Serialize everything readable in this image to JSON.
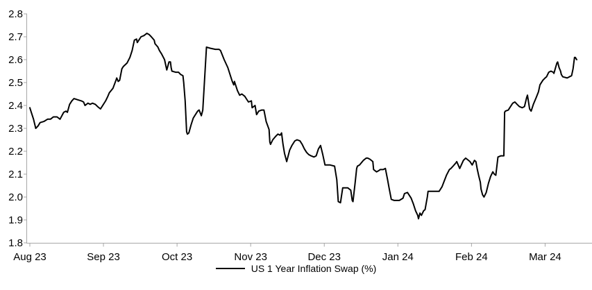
{
  "chart_data": {
    "type": "line",
    "series_name": "US 1 Year Inflation Swap (%)",
    "x_ticks": [
      "Aug 23",
      "Sep 23",
      "Oct 23",
      "Nov 23",
      "Dec 23",
      "Jan 24",
      "Feb 24",
      "Mar 24"
    ],
    "y_ticks": [
      "2.8",
      "2.7",
      "2.6",
      "2.5",
      "2.4",
      "2.3",
      "2.2",
      "2.1",
      "2.0",
      "1.9",
      "1.8"
    ],
    "ylim": [
      1.8,
      2.8
    ],
    "xlim_months": [
      0,
      7.64
    ],
    "grid": false,
    "legend_position": "bottom-center",
    "line_color": "#000000",
    "axis_color": "#a6a6a6",
    "label_color": "#000000",
    "points_format": "[months_since_Aug_2023, swap_rate_percent]",
    "points": [
      [
        0.0,
        2.39
      ],
      [
        0.02,
        2.37
      ],
      [
        0.05,
        2.34
      ],
      [
        0.08,
        2.3
      ],
      [
        0.11,
        2.31
      ],
      [
        0.14,
        2.325
      ],
      [
        0.19,
        2.33
      ],
      [
        0.24,
        2.34
      ],
      [
        0.28,
        2.34
      ],
      [
        0.32,
        2.35
      ],
      [
        0.37,
        2.35
      ],
      [
        0.41,
        2.34
      ],
      [
        0.46,
        2.37
      ],
      [
        0.49,
        2.375
      ],
      [
        0.51,
        2.37
      ],
      [
        0.54,
        2.405
      ],
      [
        0.57,
        2.42
      ],
      [
        0.6,
        2.43
      ],
      [
        0.65,
        2.425
      ],
      [
        0.7,
        2.42
      ],
      [
        0.73,
        2.415
      ],
      [
        0.75,
        2.4
      ],
      [
        0.79,
        2.41
      ],
      [
        0.82,
        2.405
      ],
      [
        0.85,
        2.41
      ],
      [
        0.89,
        2.405
      ],
      [
        0.92,
        2.395
      ],
      [
        0.96,
        2.385
      ],
      [
        0.99,
        2.4
      ],
      [
        1.03,
        2.42
      ],
      [
        1.06,
        2.44
      ],
      [
        1.08,
        2.455
      ],
      [
        1.13,
        2.475
      ],
      [
        1.17,
        2.51
      ],
      [
        1.18,
        2.52
      ],
      [
        1.2,
        2.505
      ],
      [
        1.22,
        2.51
      ],
      [
        1.25,
        2.56
      ],
      [
        1.27,
        2.57
      ],
      [
        1.32,
        2.585
      ],
      [
        1.36,
        2.61
      ],
      [
        1.39,
        2.64
      ],
      [
        1.42,
        2.685
      ],
      [
        1.45,
        2.69
      ],
      [
        1.46,
        2.675
      ],
      [
        1.48,
        2.685
      ],
      [
        1.51,
        2.7
      ],
      [
        1.55,
        2.705
      ],
      [
        1.59,
        2.715
      ],
      [
        1.62,
        2.71
      ],
      [
        1.65,
        2.7
      ],
      [
        1.69,
        2.685
      ],
      [
        1.7,
        2.67
      ],
      [
        1.74,
        2.655
      ],
      [
        1.76,
        2.64
      ],
      [
        1.79,
        2.625
      ],
      [
        1.83,
        2.6
      ],
      [
        1.86,
        2.555
      ],
      [
        1.89,
        2.59
      ],
      [
        1.91,
        2.59
      ],
      [
        1.92,
        2.565
      ],
      [
        1.93,
        2.55
      ],
      [
        1.98,
        2.545
      ],
      [
        2.02,
        2.545
      ],
      [
        2.05,
        2.535
      ],
      [
        2.08,
        2.53
      ],
      [
        2.09,
        2.5
      ],
      [
        2.11,
        2.42
      ],
      [
        2.13,
        2.285
      ],
      [
        2.14,
        2.275
      ],
      [
        2.16,
        2.28
      ],
      [
        2.19,
        2.315
      ],
      [
        2.22,
        2.345
      ],
      [
        2.25,
        2.36
      ],
      [
        2.28,
        2.375
      ],
      [
        2.3,
        2.38
      ],
      [
        2.33,
        2.355
      ],
      [
        2.35,
        2.38
      ],
      [
        2.4,
        2.655
      ],
      [
        2.45,
        2.65
      ],
      [
        2.52,
        2.645
      ],
      [
        2.57,
        2.645
      ],
      [
        2.59,
        2.64
      ],
      [
        2.64,
        2.6
      ],
      [
        2.69,
        2.565
      ],
      [
        2.73,
        2.525
      ],
      [
        2.75,
        2.505
      ],
      [
        2.77,
        2.49
      ],
      [
        2.78,
        2.505
      ],
      [
        2.82,
        2.465
      ],
      [
        2.85,
        2.445
      ],
      [
        2.88,
        2.45
      ],
      [
        2.92,
        2.44
      ],
      [
        2.94,
        2.43
      ],
      [
        2.97,
        2.415
      ],
      [
        3.01,
        2.42
      ],
      [
        3.02,
        2.39
      ],
      [
        3.06,
        2.4
      ],
      [
        3.08,
        2.36
      ],
      [
        3.11,
        2.375
      ],
      [
        3.15,
        2.38
      ],
      [
        3.18,
        2.38
      ],
      [
        3.21,
        2.33
      ],
      [
        3.25,
        2.295
      ],
      [
        3.26,
        2.24
      ],
      [
        3.27,
        2.23
      ],
      [
        3.3,
        2.25
      ],
      [
        3.34,
        2.265
      ],
      [
        3.37,
        2.275
      ],
      [
        3.4,
        2.27
      ],
      [
        3.42,
        2.28
      ],
      [
        3.44,
        2.23
      ],
      [
        3.46,
        2.19
      ],
      [
        3.49,
        2.155
      ],
      [
        3.53,
        2.205
      ],
      [
        3.56,
        2.225
      ],
      [
        3.6,
        2.245
      ],
      [
        3.63,
        2.25
      ],
      [
        3.67,
        2.245
      ],
      [
        3.7,
        2.23
      ],
      [
        3.73,
        2.21
      ],
      [
        3.76,
        2.195
      ],
      [
        3.79,
        2.185
      ],
      [
        3.82,
        2.18
      ],
      [
        3.86,
        2.175
      ],
      [
        3.89,
        2.18
      ],
      [
        3.92,
        2.21
      ],
      [
        3.95,
        2.225
      ],
      [
        3.98,
        2.185
      ],
      [
        4.01,
        2.14
      ],
      [
        4.08,
        2.14
      ],
      [
        4.14,
        2.135
      ],
      [
        4.17,
        2.075
      ],
      [
        4.19,
        1.98
      ],
      [
        4.22,
        1.975
      ],
      [
        4.25,
        2.04
      ],
      [
        4.32,
        2.04
      ],
      [
        4.36,
        2.03
      ],
      [
        4.38,
        1.985
      ],
      [
        4.39,
        1.98
      ],
      [
        4.42,
        2.065
      ],
      [
        4.44,
        2.125
      ],
      [
        4.45,
        2.135
      ],
      [
        4.48,
        2.14
      ],
      [
        4.53,
        2.16
      ],
      [
        4.57,
        2.17
      ],
      [
        4.59,
        2.17
      ],
      [
        4.62,
        2.165
      ],
      [
        4.66,
        2.155
      ],
      [
        4.67,
        2.12
      ],
      [
        4.71,
        2.11
      ],
      [
        4.74,
        2.115
      ],
      [
        4.76,
        2.12
      ],
      [
        4.8,
        2.12
      ],
      [
        4.83,
        2.125
      ],
      [
        4.86,
        2.075
      ],
      [
        4.88,
        2.04
      ],
      [
        4.91,
        1.99
      ],
      [
        4.95,
        1.985
      ],
      [
        5.02,
        1.985
      ],
      [
        5.07,
        1.995
      ],
      [
        5.09,
        2.015
      ],
      [
        5.13,
        2.02
      ],
      [
        5.18,
        1.995
      ],
      [
        5.21,
        1.97
      ],
      [
        5.24,
        1.94
      ],
      [
        5.27,
        1.92
      ],
      [
        5.28,
        1.905
      ],
      [
        5.3,
        1.93
      ],
      [
        5.32,
        1.92
      ],
      [
        5.35,
        1.94
      ],
      [
        5.37,
        1.945
      ],
      [
        5.4,
        2.0
      ],
      [
        5.41,
        2.025
      ],
      [
        5.44,
        2.025
      ],
      [
        5.56,
        2.025
      ],
      [
        5.6,
        2.045
      ],
      [
        5.63,
        2.07
      ],
      [
        5.66,
        2.095
      ],
      [
        5.7,
        2.12
      ],
      [
        5.72,
        2.125
      ],
      [
        5.75,
        2.135
      ],
      [
        5.79,
        2.15
      ],
      [
        5.8,
        2.155
      ],
      [
        5.84,
        2.125
      ],
      [
        5.89,
        2.16
      ],
      [
        5.92,
        2.17
      ],
      [
        5.94,
        2.165
      ],
      [
        5.98,
        2.155
      ],
      [
        6.01,
        2.14
      ],
      [
        6.04,
        2.16
      ],
      [
        6.06,
        2.155
      ],
      [
        6.08,
        2.12
      ],
      [
        6.1,
        2.09
      ],
      [
        6.12,
        2.065
      ],
      [
        6.13,
        2.035
      ],
      [
        6.15,
        2.01
      ],
      [
        6.17,
        2.0
      ],
      [
        6.2,
        2.02
      ],
      [
        6.23,
        2.06
      ],
      [
        6.26,
        2.09
      ],
      [
        6.29,
        2.11
      ],
      [
        6.31,
        2.1
      ],
      [
        6.33,
        2.095
      ],
      [
        6.36,
        2.175
      ],
      [
        6.4,
        2.18
      ],
      [
        6.44,
        2.18
      ],
      [
        6.45,
        2.37
      ],
      [
        6.46,
        2.375
      ],
      [
        6.5,
        2.38
      ],
      [
        6.53,
        2.395
      ],
      [
        6.56,
        2.41
      ],
      [
        6.59,
        2.415
      ],
      [
        6.62,
        2.405
      ],
      [
        6.65,
        2.395
      ],
      [
        6.69,
        2.39
      ],
      [
        6.72,
        2.395
      ],
      [
        6.75,
        2.435
      ],
      [
        6.76,
        2.445
      ],
      [
        6.79,
        2.385
      ],
      [
        6.81,
        2.375
      ],
      [
        6.84,
        2.405
      ],
      [
        6.88,
        2.435
      ],
      [
        6.91,
        2.46
      ],
      [
        6.93,
        2.49
      ],
      [
        6.97,
        2.51
      ],
      [
        7.0,
        2.52
      ],
      [
        7.02,
        2.525
      ],
      [
        7.05,
        2.545
      ],
      [
        7.08,
        2.55
      ],
      [
        7.11,
        2.545
      ],
      [
        7.12,
        2.54
      ],
      [
        7.16,
        2.585
      ],
      [
        7.17,
        2.59
      ],
      [
        7.19,
        2.565
      ],
      [
        7.21,
        2.55
      ],
      [
        7.22,
        2.535
      ],
      [
        7.24,
        2.525
      ],
      [
        7.3,
        2.52
      ],
      [
        7.33,
        2.525
      ],
      [
        7.36,
        2.53
      ],
      [
        7.38,
        2.56
      ],
      [
        7.4,
        2.61
      ],
      [
        7.41,
        2.61
      ],
      [
        7.43,
        2.6
      ]
    ]
  },
  "legend": {
    "label": "US 1 Year Inflation Swap (%)"
  }
}
